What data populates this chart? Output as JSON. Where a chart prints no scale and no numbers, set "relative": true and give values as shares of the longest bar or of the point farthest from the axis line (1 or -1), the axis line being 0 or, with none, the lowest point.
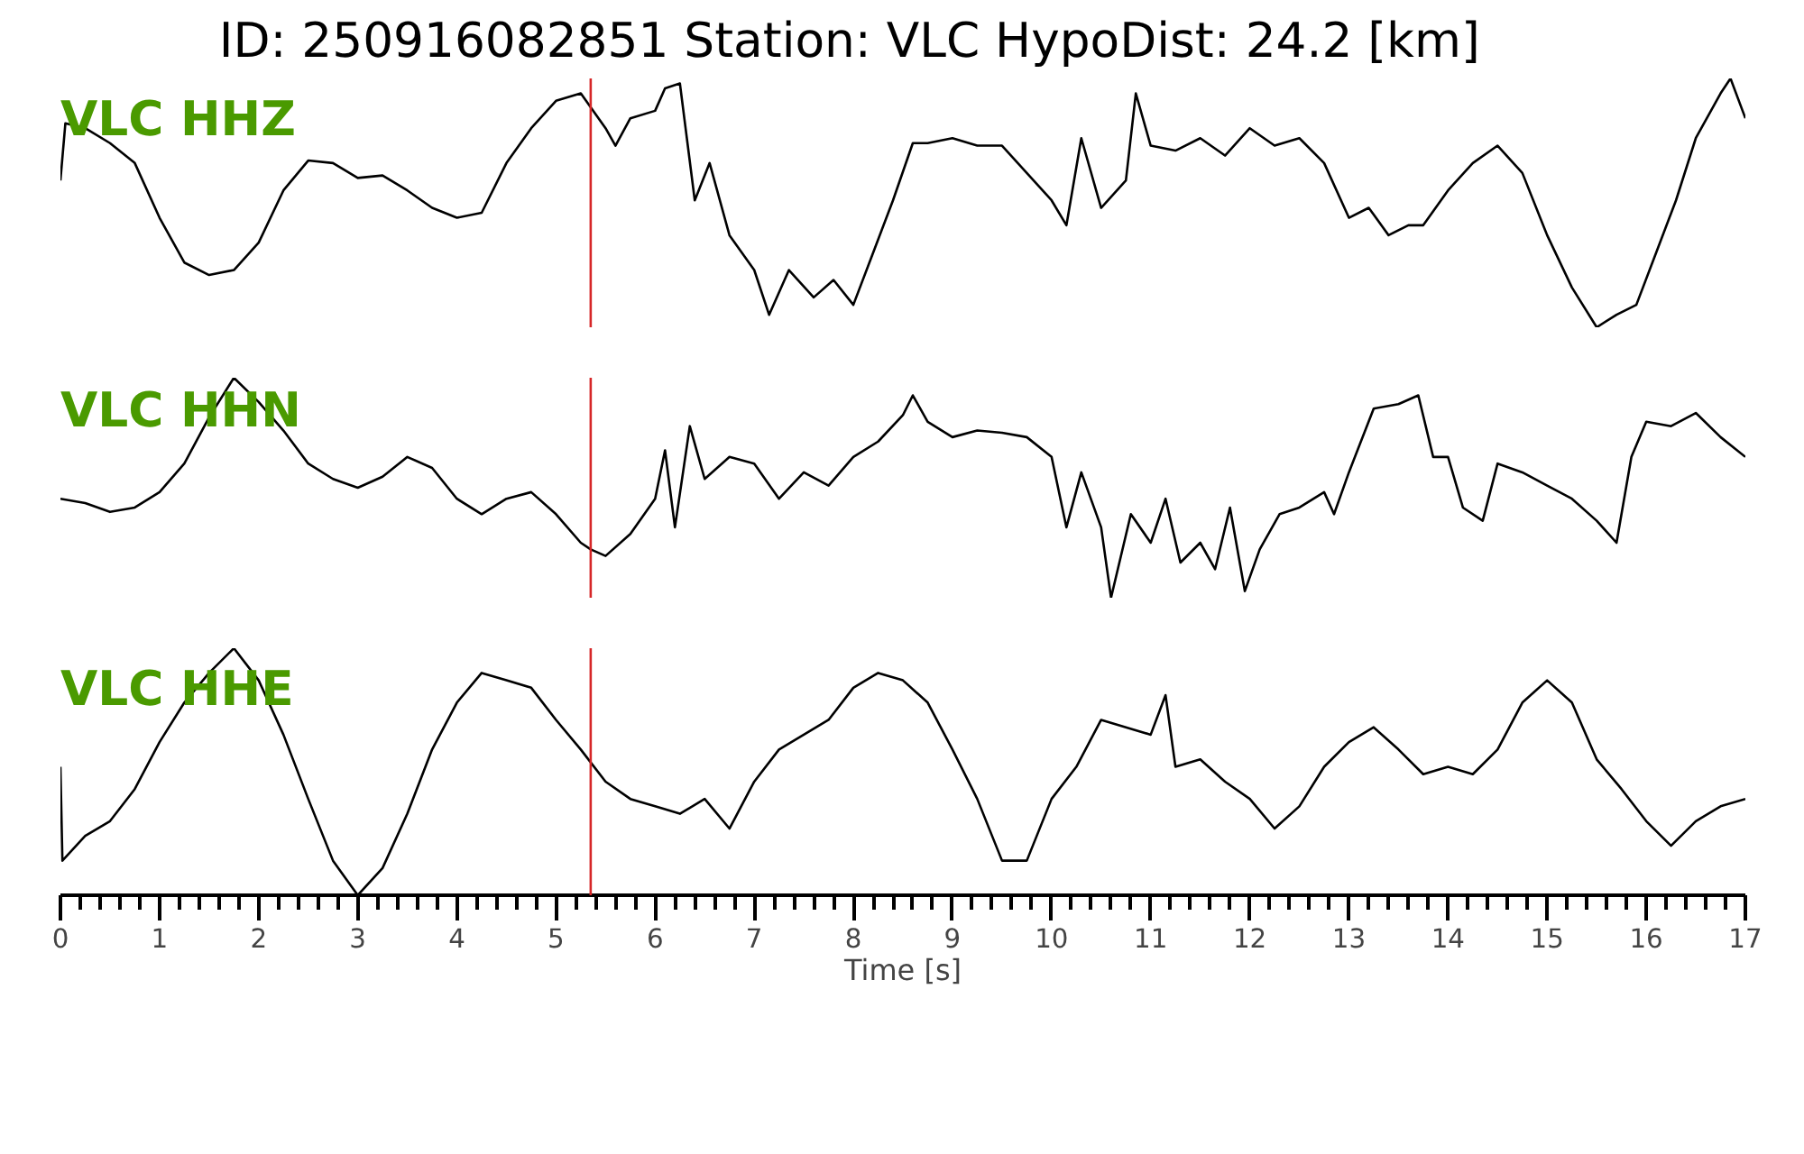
{
  "chart_data": [
    {
      "type": "line",
      "title": "ID: 250916082851   Station: VLC   HypoDist:    24.2 [km]",
      "relative": true,
      "xlim": [
        0,
        17
      ],
      "tick_labels": false,
      "grid": false,
      "line_style": "solid",
      "ref_lines": [
        {
          "axis": "x",
          "value": 5.35,
          "color": "#d62728"
        }
      ],
      "x": [
        0,
        0.05,
        0.25,
        0.5,
        0.75,
        1.0,
        1.25,
        1.5,
        1.75,
        2.0,
        2.25,
        2.5,
        2.75,
        3.0,
        3.25,
        3.5,
        3.75,
        4.0,
        4.25,
        4.5,
        4.75,
        5.0,
        5.25,
        5.5,
        5.6,
        5.75,
        6.0,
        6.1,
        6.25,
        6.4,
        6.55,
        6.75,
        7.0,
        7.15,
        7.35,
        7.6,
        7.8,
        8.0,
        8.2,
        8.4,
        8.6,
        8.75,
        9.0,
        9.25,
        9.5,
        9.75,
        10.0,
        10.15,
        10.3,
        10.5,
        10.75,
        10.85,
        11.0,
        11.25,
        11.5,
        11.75,
        12.0,
        12.25,
        12.5,
        12.75,
        13.0,
        13.2,
        13.4,
        13.6,
        13.75,
        14.0,
        14.25,
        14.5,
        14.75,
        15.0,
        15.25,
        15.5,
        15.7,
        15.9,
        16.1,
        16.3,
        16.5,
        16.75,
        16.85,
        17.0
      ],
      "series": [
        {
          "name": "VLC HHZ",
          "color": "#000000",
          "values": [
            0.59,
            0.82,
            0.8,
            0.74,
            0.66,
            0.44,
            0.26,
            0.21,
            0.23,
            0.34,
            0.55,
            0.67,
            0.66,
            0.6,
            0.61,
            0.55,
            0.48,
            0.44,
            0.46,
            0.66,
            0.8,
            0.91,
            0.94,
            0.8,
            0.73,
            0.84,
            0.87,
            0.96,
            0.98,
            0.51,
            0.66,
            0.37,
            0.23,
            0.05,
            0.23,
            0.12,
            0.19,
            0.09,
            0.3,
            0.51,
            0.74,
            0.74,
            0.76,
            0.73,
            0.73,
            0.62,
            0.51,
            0.41,
            0.76,
            0.48,
            0.59,
            0.94,
            0.73,
            0.71,
            0.76,
            0.69,
            0.8,
            0.73,
            0.76,
            0.66,
            0.44,
            0.48,
            0.37,
            0.41,
            0.41,
            0.55,
            0.66,
            0.73,
            0.62,
            0.37,
            0.16,
            0,
            0.05,
            0.09,
            0.3,
            0.51,
            0.76,
            0.94,
            1.0,
            0.84
          ]
        }
      ]
    },
    {
      "type": "line",
      "relative": true,
      "xlim": [
        0,
        17
      ],
      "tick_labels": false,
      "grid": false,
      "line_style": "solid",
      "ref_lines": [
        {
          "axis": "x",
          "value": 5.35,
          "color": "#d62728"
        }
      ],
      "x": [
        0,
        0.25,
        0.5,
        0.75,
        1.0,
        1.25,
        1.5,
        1.75,
        2.0,
        2.25,
        2.5,
        2.75,
        3.0,
        3.25,
        3.5,
        3.75,
        4.0,
        4.25,
        4.5,
        4.75,
        5.0,
        5.25,
        5.35,
        5.5,
        5.75,
        6.0,
        6.1,
        6.2,
        6.35,
        6.5,
        6.75,
        7.0,
        7.25,
        7.5,
        7.75,
        8.0,
        8.25,
        8.5,
        8.6,
        8.75,
        9.0,
        9.25,
        9.5,
        9.75,
        10.0,
        10.15,
        10.3,
        10.5,
        10.6,
        10.8,
        11.0,
        11.15,
        11.3,
        11.5,
        11.65,
        11.8,
        11.95,
        12.1,
        12.3,
        12.5,
        12.75,
        12.85,
        13.0,
        13.25,
        13.5,
        13.7,
        13.85,
        14.0,
        14.15,
        14.35,
        14.5,
        14.75,
        15.0,
        15.25,
        15.5,
        15.7,
        15.85,
        16.0,
        16.25,
        16.5,
        16.75,
        17.0
      ],
      "series": [
        {
          "name": "VLC HHN",
          "color": "#000000",
          "values": [
            0.45,
            0.43,
            0.39,
            0.41,
            0.48,
            0.61,
            0.82,
            1.0,
            0.89,
            0.76,
            0.61,
            0.54,
            0.5,
            0.55,
            0.64,
            0.59,
            0.45,
            0.38,
            0.45,
            0.48,
            0.38,
            0.25,
            0.22,
            0.19,
            0.29,
            0.45,
            0.67,
            0.32,
            0.78,
            0.54,
            0.64,
            0.61,
            0.45,
            0.57,
            0.51,
            0.64,
            0.71,
            0.83,
            0.92,
            0.8,
            0.73,
            0.76,
            0.75,
            0.73,
            0.64,
            0.32,
            0.57,
            0.32,
            0,
            0.38,
            0.25,
            0.45,
            0.16,
            0.25,
            0.13,
            0.41,
            0.03,
            0.22,
            0.38,
            0.41,
            0.48,
            0.38,
            0.57,
            0.86,
            0.88,
            0.92,
            0.64,
            0.64,
            0.41,
            0.35,
            0.61,
            0.57,
            0.51,
            0.45,
            0.35,
            0.25,
            0.64,
            0.8,
            0.78,
            0.84,
            0.73,
            0.64
          ]
        }
      ]
    },
    {
      "type": "line",
      "relative": true,
      "xlim": [
        0,
        17
      ],
      "xticks": [
        0,
        1,
        2,
        3,
        4,
        5,
        6,
        7,
        8,
        9,
        10,
        11,
        12,
        13,
        14,
        15,
        16,
        17
      ],
      "xlabel": "Time [s]",
      "tick_labels": "x",
      "grid": false,
      "line_style": "solid",
      "ref_lines": [
        {
          "axis": "x",
          "value": 5.35,
          "color": "#d62728"
        }
      ],
      "x": [
        0,
        0.02,
        0.25,
        0.5,
        0.75,
        1.0,
        1.25,
        1.5,
        1.75,
        2.0,
        2.25,
        2.5,
        2.75,
        3.0,
        3.25,
        3.5,
        3.75,
        4.0,
        4.25,
        4.5,
        4.75,
        5.0,
        5.25,
        5.5,
        5.75,
        6.0,
        6.25,
        6.5,
        6.75,
        7.0,
        7.25,
        7.5,
        7.75,
        8.0,
        8.25,
        8.5,
        8.75,
        9.0,
        9.25,
        9.5,
        9.75,
        10.0,
        10.25,
        10.5,
        10.75,
        11.0,
        11.15,
        11.25,
        11.5,
        11.75,
        12.0,
        12.25,
        12.5,
        12.75,
        13.0,
        13.25,
        13.5,
        13.75,
        14.0,
        14.25,
        14.5,
        14.75,
        15.0,
        15.25,
        15.5,
        15.75,
        16.0,
        16.25,
        16.5,
        16.75,
        17.0
      ],
      "series": [
        {
          "name": "VLC HHE",
          "color": "#000000",
          "values": [
            0.52,
            0.14,
            0.24,
            0.3,
            0.43,
            0.62,
            0.78,
            0.9,
            1.0,
            0.87,
            0.65,
            0.39,
            0.14,
            0,
            0.11,
            0.33,
            0.59,
            0.78,
            0.9,
            0.87,
            0.84,
            0.71,
            0.59,
            0.46,
            0.39,
            0.36,
            0.33,
            0.39,
            0.27,
            0.46,
            0.59,
            0.65,
            0.71,
            0.84,
            0.9,
            0.87,
            0.78,
            0.59,
            0.39,
            0.14,
            0.14,
            0.39,
            0.52,
            0.71,
            0.68,
            0.65,
            0.81,
            0.52,
            0.55,
            0.46,
            0.39,
            0.27,
            0.36,
            0.52,
            0.62,
            0.68,
            0.59,
            0.49,
            0.52,
            0.49,
            0.59,
            0.78,
            0.87,
            0.78,
            0.55,
            0.43,
            0.3,
            0.2,
            0.3,
            0.36,
            0.39
          ]
        }
      ]
    }
  ]
}
